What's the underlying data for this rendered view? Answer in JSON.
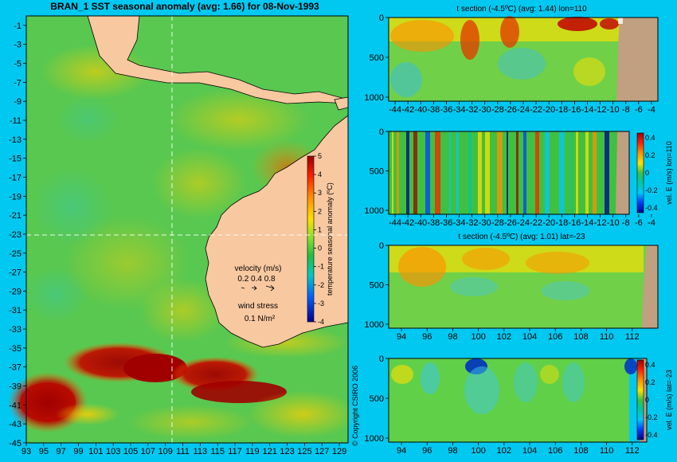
{
  "page": {
    "background": "#00c8f0",
    "copyright": "© Copyright CSIRO 2006"
  },
  "chart_data": [
    {
      "type": "heatmap",
      "title": "BRAN_1 SST seasonal anomaly (avg: 1.66) for 08-Nov-1993",
      "x_ticks": [
        93,
        95,
        97,
        99,
        101,
        103,
        105,
        107,
        109,
        111,
        113,
        115,
        117,
        119,
        121,
        123,
        125,
        127,
        129
      ],
      "y_ticks": [
        -1,
        -3,
        -5,
        -7,
        -9,
        -11,
        -13,
        -15,
        -17,
        -19,
        -21,
        -23,
        -25,
        -27,
        -29,
        -31,
        -33,
        -35,
        -37,
        -39,
        -41,
        -43,
        -45
      ],
      "xlim": [
        93,
        130
      ],
      "ylim": [
        -45,
        0
      ],
      "crosshair": {
        "lon": 110,
        "lat": -23
      },
      "colorbar": {
        "label": "temperature seasonal anomaly (ºC)",
        "ticks": [
          5,
          4,
          3,
          2,
          1,
          0,
          -1,
          -2,
          -3,
          -4
        ],
        "range": [
          -4,
          5
        ]
      },
      "legend": {
        "velocity_title": "velocity (m/s)",
        "velocity_scale": "0.2 0.4 0.8",
        "wind_title": "wind stress",
        "wind_scale": "0.1 N/m²"
      },
      "colors": {
        "land": "#f8c8a0",
        "warm": "#a00000",
        "cool": "#00a0e0"
      }
    },
    {
      "type": "heatmap",
      "title": "t section (-4.5ºC) (avg: 1.44) lon=110",
      "x_ticks": [
        -44,
        -42,
        -40,
        -38,
        -36,
        -34,
        -32,
        -30,
        -28,
        -26,
        -24,
        -22,
        -20,
        -18,
        -16,
        -14,
        -12,
        -10,
        -8,
        -6,
        -4
      ],
      "y_ticks": [
        0,
        500,
        1000
      ],
      "xlim": [
        -45,
        -3
      ],
      "ylim": [
        1050,
        0
      ]
    },
    {
      "type": "heatmap",
      "title": "",
      "x_ticks": [
        -44,
        -42,
        -40,
        -38,
        -36,
        -34,
        -32,
        -30,
        -28,
        -26,
        -24,
        -22,
        -20,
        -18,
        -16,
        -14,
        -12,
        -10,
        -8,
        -6,
        -4
      ],
      "y_ticks": [
        0,
        500,
        1000
      ],
      "xlim": [
        -45,
        -3
      ],
      "ylim": [
        1050,
        0
      ],
      "colorbar": {
        "label": "vel. E (m/s) lon=110",
        "ticks": [
          "0.4",
          "0.2",
          "0",
          "-0.2",
          "-0.4"
        ]
      }
    },
    {
      "type": "heatmap",
      "title": "t section (-4.5ºC) (avg: 1.01) lat=-23",
      "x_ticks": [
        94,
        96,
        98,
        100,
        102,
        104,
        106,
        108,
        110,
        112
      ],
      "y_ticks": [
        0,
        500,
        1000
      ],
      "xlim": [
        93,
        114
      ],
      "ylim": [
        1050,
        0
      ]
    },
    {
      "type": "heatmap",
      "title": "",
      "x_ticks": [
        94,
        96,
        98,
        100,
        102,
        104,
        106,
        108,
        110,
        112
      ],
      "y_ticks": [
        0,
        500,
        1000
      ],
      "xlim": [
        93,
        114
      ],
      "ylim": [
        1050,
        0
      ],
      "colorbar": {
        "label": "vel. E (m/s) lat=-23",
        "ticks": [
          "0.4",
          "0.2",
          "0",
          "-0.2",
          "-0.4"
        ]
      }
    }
  ]
}
